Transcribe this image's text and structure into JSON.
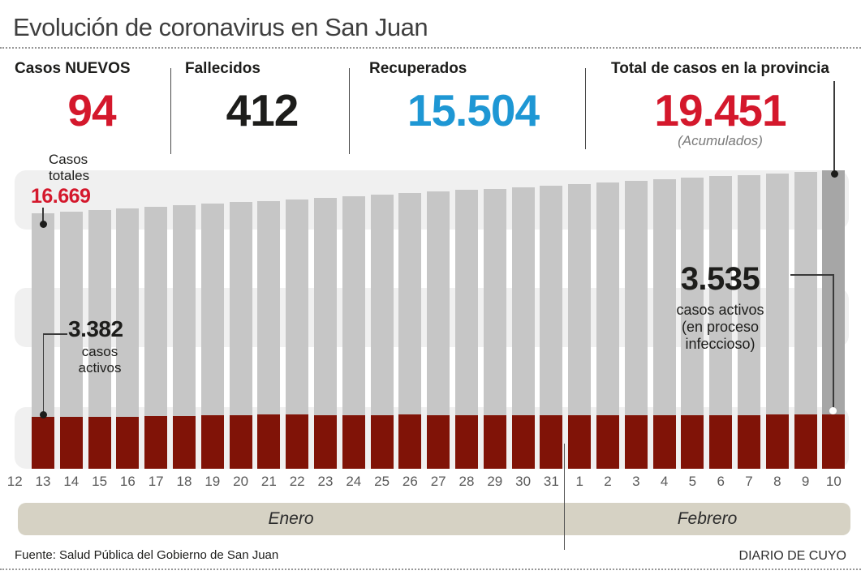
{
  "page": {
    "title": "Evolución de coronavirus en San Juan",
    "source": "Fuente: Salud Pública del Gobierno de San Juan",
    "credit": "DIARIO DE CUYO"
  },
  "colors": {
    "accent_red": "#d4182c",
    "accent_blue": "#1e97d4",
    "bar_gray": "#c6c6c6",
    "bar_gray_highlight": "#a6a6a6",
    "bar_red": "#801307",
    "band_gray": "#f0f0f0",
    "month_band": "#d6d2c4"
  },
  "stats": [
    {
      "label": "Casos NUEVOS",
      "value": "94"
    },
    {
      "label": "Fallecidos",
      "value": "412"
    },
    {
      "label": "Recuperados",
      "value": "15.504"
    },
    {
      "label": "Total de casos en la provincia",
      "value": "19.451",
      "note": "(Acumulados)"
    }
  ],
  "annotations": {
    "casos_totales": {
      "line1": "Casos",
      "line2": "totales",
      "value": "16.669"
    },
    "activos_first": {
      "value": "3.382",
      "line1": "casos",
      "line2": "activos"
    },
    "activos_last": {
      "value": "3.535",
      "line1": "casos activos",
      "line2": "(en proceso",
      "line3": "infeccioso)"
    }
  },
  "chart_data": {
    "type": "bar",
    "title": "Evolución de coronavirus en San Juan",
    "ylim": [
      0,
      19451
    ],
    "x_axis_labels": [
      "12",
      "13",
      "14",
      "15",
      "16",
      "17",
      "18",
      "19",
      "20",
      "21",
      "22",
      "23",
      "24",
      "25",
      "26",
      "27",
      "28",
      "29",
      "30",
      "31",
      "1",
      "2",
      "3",
      "4",
      "5",
      "6",
      "7",
      "8",
      "9",
      "10"
    ],
    "days": [
      "13",
      "14",
      "15",
      "16",
      "17",
      "18",
      "19",
      "20",
      "21",
      "22",
      "23",
      "24",
      "25",
      "26",
      "27",
      "28",
      "29",
      "30",
      "31",
      "1",
      "2",
      "3",
      "4",
      "5",
      "6",
      "7",
      "8",
      "9",
      "10"
    ],
    "months": [
      {
        "label": "Enero",
        "covers_labels": "12-31"
      },
      {
        "label": "Febrero",
        "covers_labels": "1-10"
      }
    ],
    "series": [
      {
        "name": "Casos totales (acumulados)",
        "color": "#c6c6c6",
        "highlight_last_color": "#a6a6a6",
        "values": [
          16669,
          16769,
          16868,
          16968,
          17067,
          17167,
          17266,
          17366,
          17465,
          17565,
          17664,
          17764,
          17863,
          17963,
          18062,
          18162,
          18261,
          18361,
          18460,
          18560,
          18659,
          18759,
          18858,
          18958,
          19057,
          19157,
          19256,
          19357,
          19451
        ]
      },
      {
        "name": "Casos activos (en proceso infeccioso)",
        "color": "#801307",
        "values": [
          3382,
          3390,
          3380,
          3400,
          3425,
          3450,
          3478,
          3505,
          3540,
          3530,
          3510,
          3490,
          3500,
          3515,
          3500,
          3485,
          3495,
          3505,
          3512,
          3500,
          3505,
          3510,
          3505,
          3498,
          3508,
          3502,
          3515,
          3524,
          3535
        ]
      }
    ],
    "labeled_points": [
      {
        "series": "Casos totales",
        "day": "13 Enero",
        "value": 16669,
        "label": "16.669"
      },
      {
        "series": "Casos activos",
        "day": "13 Enero",
        "value": 3382,
        "label": "3.382"
      },
      {
        "series": "Casos activos",
        "day": "10 Febrero",
        "value": 3535,
        "label": "3.535"
      },
      {
        "series": "Casos totales",
        "day": "10 Febrero",
        "value": 19451,
        "label": "19.451"
      }
    ]
  }
}
